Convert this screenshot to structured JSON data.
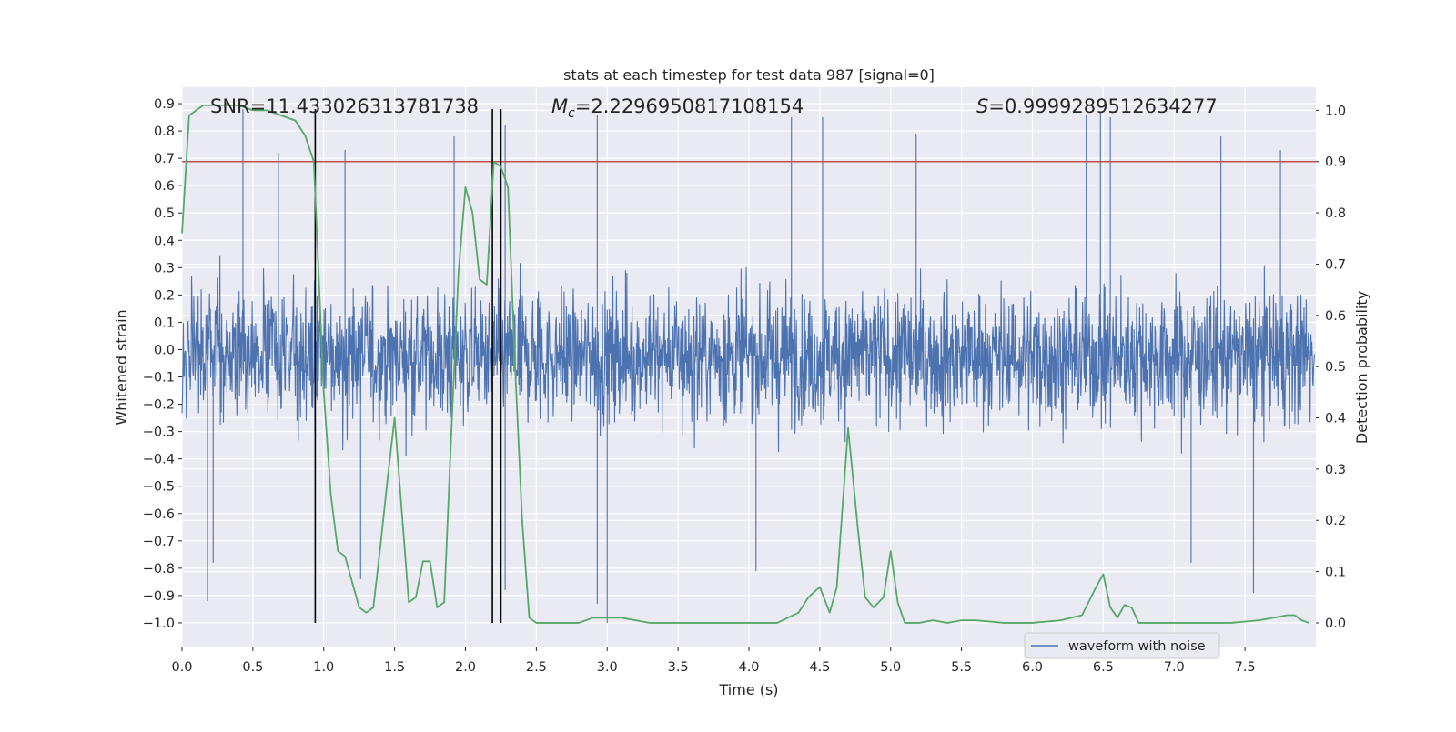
{
  "chart_data": {
    "type": "line",
    "title": "stats at each timestep for test data 987 [signal=0]",
    "xlabel": "Time (s)",
    "ylabel_left": "Whitened strain",
    "ylabel_right": "Detection probability",
    "xlim": [
      0.0,
      8.0
    ],
    "ylim_left": [
      -1.09,
      0.96
    ],
    "ylim_right": [
      -0.048,
      1.045
    ],
    "grid": true,
    "x_ticks": [
      "0.0",
      "0.5",
      "1.0",
      "1.5",
      "2.0",
      "2.5",
      "3.0",
      "3.5",
      "4.0",
      "4.5",
      "5.0",
      "5.5",
      "6.0",
      "6.5",
      "7.0",
      "7.5"
    ],
    "y_left_ticks": [
      "0.9",
      "0.8",
      "0.7",
      "0.6",
      "0.5",
      "0.4",
      "0.3",
      "0.2",
      "0.1",
      "0.0",
      "-0.1",
      "-0.2",
      "-0.3",
      "-0.4",
      "-0.5",
      "-0.6",
      "-0.7",
      "-0.8",
      "-0.9",
      "-1.0"
    ],
    "y_right_ticks": [
      "1.0",
      "0.9",
      "0.8",
      "0.7",
      "0.6",
      "0.5",
      "0.4",
      "0.3",
      "0.2",
      "0.1",
      "0.0"
    ],
    "annotations": {
      "snr": "SNR=11.433026313781738",
      "mc_symbol": "M",
      "mc_sub": "c",
      "mc_value": "=2.2296950817108154",
      "s_symbol": "S",
      "s_value": "=0.9999289512634277"
    },
    "legend": {
      "entries": [
        {
          "label": "waveform with noise",
          "color": "#4c72b0"
        }
      ],
      "placement": "lower-right"
    },
    "threshold": {
      "value_right": 0.9,
      "color": "#c44e52"
    },
    "vertical_markers": {
      "x": [
        0.94,
        2.19,
        2.25
      ],
      "ymin_left": -1.0,
      "ymax_left": 0.88,
      "color": "#000000"
    },
    "series": [
      {
        "name": "waveform with noise",
        "axis": "left",
        "color": "#4c72b0",
        "x_range": [
          0.0,
          7.99
        ],
        "typical_range": [
          -0.45,
          0.4
        ],
        "peaks": [
          {
            "x": 0.43,
            "y": 0.88
          },
          {
            "x": 0.68,
            "y": 0.72
          },
          {
            "x": 1.15,
            "y": 0.73
          },
          {
            "x": 1.92,
            "y": 0.78
          },
          {
            "x": 2.28,
            "y": 0.82
          },
          {
            "x": 2.93,
            "y": 0.86
          },
          {
            "x": 4.3,
            "y": 0.85
          },
          {
            "x": 4.52,
            "y": 0.85
          },
          {
            "x": 5.18,
            "y": 0.79
          },
          {
            "x": 6.38,
            "y": 0.86
          },
          {
            "x": 6.48,
            "y": 0.87
          },
          {
            "x": 6.55,
            "y": 0.85
          },
          {
            "x": 7.33,
            "y": 0.78
          },
          {
            "x": 7.75,
            "y": 0.73
          }
        ],
        "troughs": [
          {
            "x": 0.18,
            "y": -0.92
          },
          {
            "x": 0.22,
            "y": -0.78
          },
          {
            "x": 1.26,
            "y": -0.84
          },
          {
            "x": 2.28,
            "y": -0.88
          },
          {
            "x": 2.93,
            "y": -0.93
          },
          {
            "x": 3.0,
            "y": -1.0
          },
          {
            "x": 4.05,
            "y": -0.81
          },
          {
            "x": 7.56,
            "y": -0.89
          },
          {
            "x": 7.12,
            "y": -0.78
          }
        ]
      },
      {
        "name": "",
        "axis": "right",
        "color": "#55a868",
        "x": [
          0.0,
          0.05,
          0.1,
          0.15,
          0.2,
          0.3,
          0.4,
          0.5,
          0.6,
          0.7,
          0.8,
          0.87,
          0.93,
          1.0,
          1.05,
          1.1,
          1.15,
          1.2,
          1.25,
          1.3,
          1.35,
          1.4,
          1.45,
          1.5,
          1.55,
          1.6,
          1.65,
          1.7,
          1.75,
          1.8,
          1.85,
          1.9,
          1.95,
          2.0,
          2.05,
          2.1,
          2.15,
          2.2,
          2.25,
          2.3,
          2.35,
          2.4,
          2.45,
          2.5,
          2.6,
          2.7,
          2.8,
          2.9,
          3.0,
          3.1,
          3.2,
          3.3,
          3.5,
          3.7,
          3.9,
          4.0,
          4.2,
          4.35,
          4.42,
          4.5,
          4.57,
          4.62,
          4.7,
          4.77,
          4.82,
          4.88,
          4.95,
          5.0,
          5.05,
          5.1,
          5.2,
          5.3,
          5.4,
          5.5,
          5.6,
          5.8,
          6.0,
          6.2,
          6.35,
          6.45,
          6.5,
          6.55,
          6.6,
          6.65,
          6.7,
          6.75,
          6.8,
          6.9,
          7.0,
          7.2,
          7.4,
          7.6,
          7.7,
          7.8,
          7.85,
          7.9,
          7.95
        ],
        "y": [
          0.76,
          0.99,
          1.0,
          1.01,
          1.01,
          1.01,
          1.01,
          1.0,
          1.0,
          0.99,
          0.98,
          0.95,
          0.9,
          0.45,
          0.25,
          0.14,
          0.13,
          0.08,
          0.03,
          0.02,
          0.03,
          0.15,
          0.28,
          0.4,
          0.22,
          0.04,
          0.05,
          0.12,
          0.12,
          0.03,
          0.04,
          0.37,
          0.68,
          0.85,
          0.8,
          0.67,
          0.66,
          0.9,
          0.89,
          0.85,
          0.5,
          0.2,
          0.01,
          0.0,
          0.0,
          0.0,
          0.0,
          0.01,
          0.01,
          0.01,
          0.005,
          0.0,
          0.0,
          0.0,
          0.0,
          0.0,
          0.0,
          0.02,
          0.05,
          0.07,
          0.02,
          0.07,
          0.38,
          0.18,
          0.05,
          0.03,
          0.05,
          0.14,
          0.04,
          0.0,
          0.0,
          0.005,
          0.0,
          0.005,
          0.005,
          0.0,
          0.0,
          0.005,
          0.015,
          0.07,
          0.095,
          0.03,
          0.01,
          0.035,
          0.03,
          0.0,
          0.0,
          0.0,
          0.0,
          0.0,
          0.0,
          0.005,
          0.01,
          0.015,
          0.015,
          0.005,
          0.0
        ]
      }
    ]
  }
}
